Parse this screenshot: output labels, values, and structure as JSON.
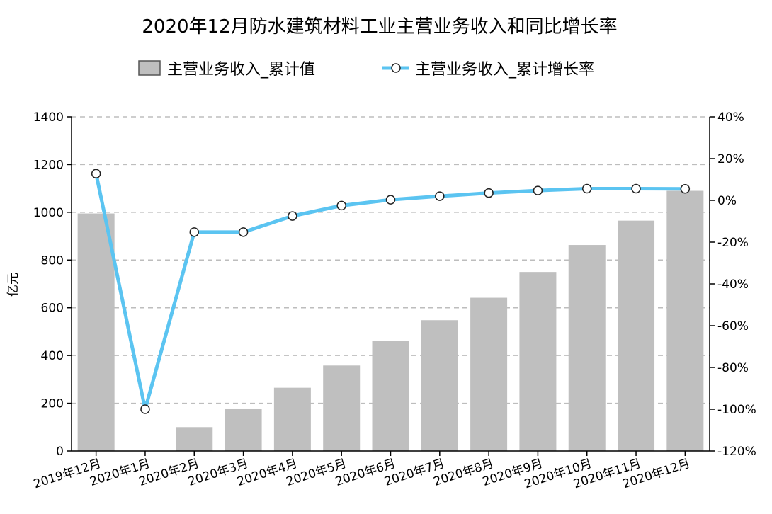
{
  "chart_data": {
    "type": "bar+line",
    "title": "2020年12月防水建筑材料工业主营业务收入和同比增长率",
    "ylabel_left": "亿元",
    "ylim_left": [
      0,
      1400
    ],
    "yticks_left": [
      "0",
      "200",
      "400",
      "600",
      "800",
      "1000",
      "1200",
      "1400"
    ],
    "ylim_right": [
      -120,
      40
    ],
    "yticks_right": [
      "-120%",
      "-100%",
      "-80%",
      "-60%",
      "-40%",
      "-20%",
      "0%",
      "20%",
      "40%"
    ],
    "grid": true,
    "legend_position": "top-center",
    "categories": [
      "2019年12月",
      "2020年1月",
      "2020年2月",
      "2020年3月",
      "2020年4月",
      "2020年5月",
      "2020年6月",
      "2020年7月",
      "2020年8月",
      "2020年9月",
      "2020年10月",
      "2020年11月",
      "2020年12月"
    ],
    "series": [
      {
        "name": "主营业务收入_累计值",
        "type": "bar",
        "axis": "left",
        "color": "#bfbfbf",
        "values": [
          995,
          0,
          100,
          178,
          265,
          358,
          460,
          548,
          642,
          750,
          863,
          965,
          1090
        ]
      },
      {
        "name": "主营业务收入_累计增长率",
        "type": "line",
        "axis": "right",
        "color": "#5bc4f1",
        "values": [
          12.8,
          -100,
          -15.2,
          -15.2,
          -7.5,
          -2.5,
          0.3,
          2,
          3.5,
          4.7,
          5.6,
          5.6,
          5.5
        ]
      }
    ]
  }
}
